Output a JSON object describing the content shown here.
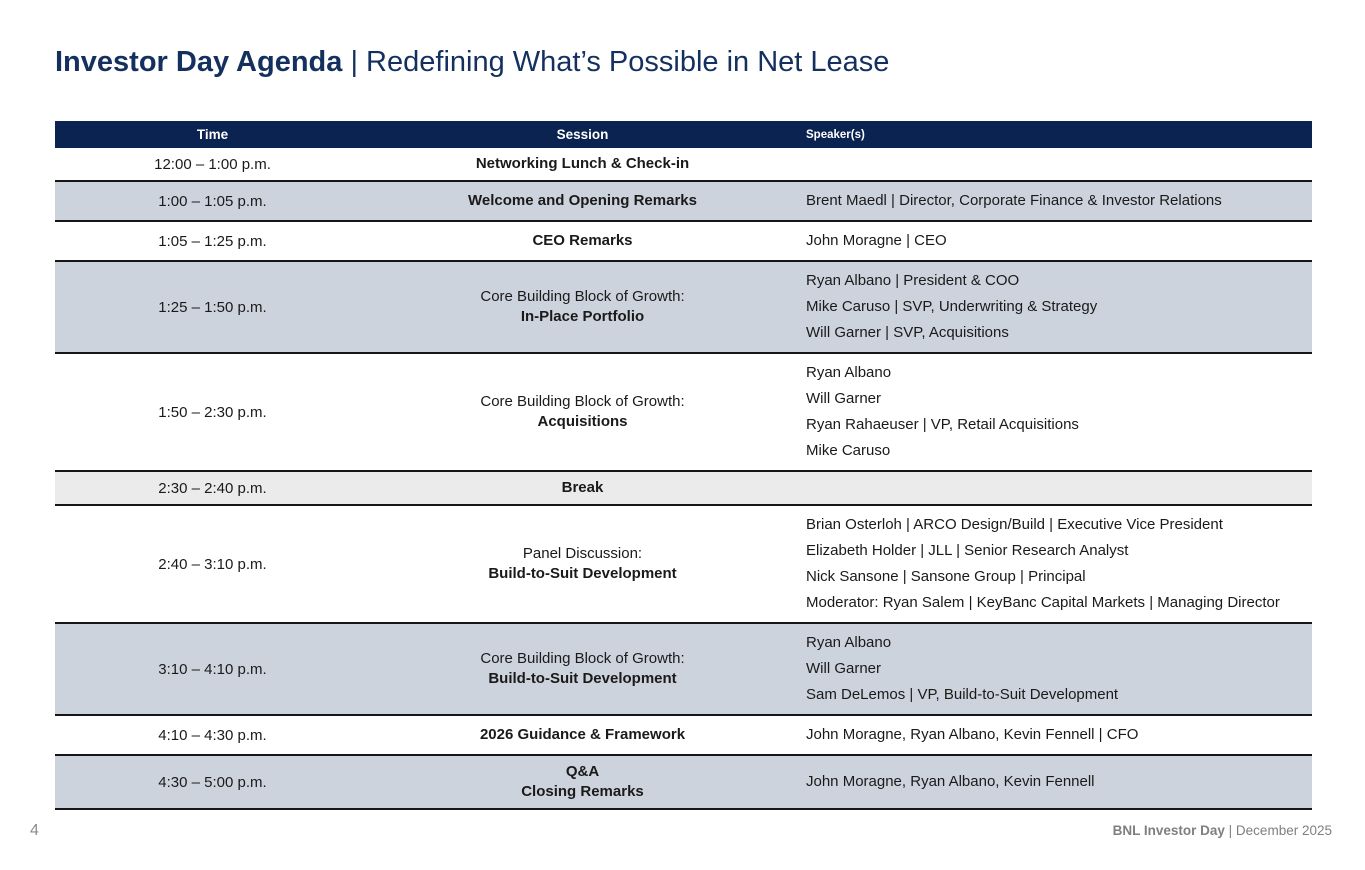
{
  "slide": {
    "title_bold": "Investor Day Agenda",
    "title_rest": "| Redefining What’s Possible in Net Lease"
  },
  "table": {
    "headers": [
      "Time",
      "Session",
      "Speaker(s)"
    ],
    "rows": [
      {
        "time": "12:00 – 1:00 p.m.",
        "session_lines": [
          {
            "text": "Networking Lunch & Check-in",
            "bold": true
          }
        ],
        "speakers": [],
        "bg": "white"
      },
      {
        "time": "1:00 – 1:05 p.m.",
        "session_lines": [
          {
            "text": "Welcome and Opening Remarks",
            "bold": true
          }
        ],
        "speakers": [
          "Brent Maedl | Director, Corporate Finance & Investor Relations"
        ],
        "bg": "shade"
      },
      {
        "time": "1:05 – 1:25 p.m.",
        "session_lines": [
          {
            "text": "CEO Remarks",
            "bold": true
          }
        ],
        "speakers": [
          "John Moragne | CEO"
        ],
        "bg": "white"
      },
      {
        "time": "1:25 – 1:50 p.m.",
        "session_lines": [
          {
            "text": "Core Building Block of Growth:",
            "bold": false
          },
          {
            "text": "In-Place Portfolio",
            "bold": true
          }
        ],
        "speakers": [
          "Ryan Albano | President & COO",
          "Mike Caruso | SVP, Underwriting & Strategy",
          "Will Garner | SVP, Acquisitions"
        ],
        "bg": "shade"
      },
      {
        "time": "1:50 – 2:30 p.m.",
        "session_lines": [
          {
            "text": "Core Building Block of Growth:",
            "bold": false
          },
          {
            "text": "Acquisitions",
            "bold": true
          }
        ],
        "speakers": [
          "Ryan Albano",
          "Will Garner",
          "Ryan Rahaeuser | VP, Retail Acquisitions",
          "Mike Caruso"
        ],
        "bg": "white"
      },
      {
        "time": "2:30 – 2:40 p.m.",
        "session_lines": [
          {
            "text": "Break",
            "bold": true
          }
        ],
        "speakers": [],
        "bg": "gray"
      },
      {
        "time": "2:40 – 3:10 p.m.",
        "session_lines": [
          {
            "text": "Panel Discussion:",
            "bold": false
          },
          {
            "text": "Build-to-Suit Development",
            "bold": true
          }
        ],
        "speakers": [
          "Brian Osterloh | ARCO Design/Build | Executive Vice President",
          "Elizabeth Holder | JLL | Senior Research Analyst",
          "Nick Sansone | Sansone Group | Principal",
          "Moderator: Ryan Salem | KeyBanc Capital Markets | Managing Director"
        ],
        "bg": "white"
      },
      {
        "time": "3:10 – 4:10 p.m.",
        "session_lines": [
          {
            "text": "Core Building Block of Growth:",
            "bold": false
          },
          {
            "text": "Build-to-Suit Development",
            "bold": true
          }
        ],
        "speakers": [
          "Ryan Albano",
          "Will Garner",
          "Sam DeLemos | VP, Build-to-Suit Development"
        ],
        "bg": "shade"
      },
      {
        "time": "4:10 – 4:30 p.m.",
        "session_lines": [
          {
            "text": "2026 Guidance & Framework",
            "bold": true
          }
        ],
        "speakers": [
          "John Moragne, Ryan Albano, Kevin Fennell | CFO"
        ],
        "bg": "white"
      },
      {
        "time": "4:30 – 5:00 p.m.",
        "session_lines": [
          {
            "text": "Q&A",
            "bold": true
          },
          {
            "text": "Closing Remarks",
            "bold": true
          }
        ],
        "speakers": [
          "John Moragne, Ryan Albano, Kevin Fennell"
        ],
        "bg": "shade"
      }
    ]
  },
  "footer": {
    "page_number": "4",
    "brand_bold": "BNL Investor Day",
    "brand_rest": "| December 2025"
  },
  "colors": {
    "header_navy": "#0B2351",
    "title_navy": "#14305E",
    "row_shade": "#CDD3DD",
    "row_break_gray": "#EBEBEB",
    "row_border": "#161616",
    "footer_gray": "#7F7F7F"
  }
}
